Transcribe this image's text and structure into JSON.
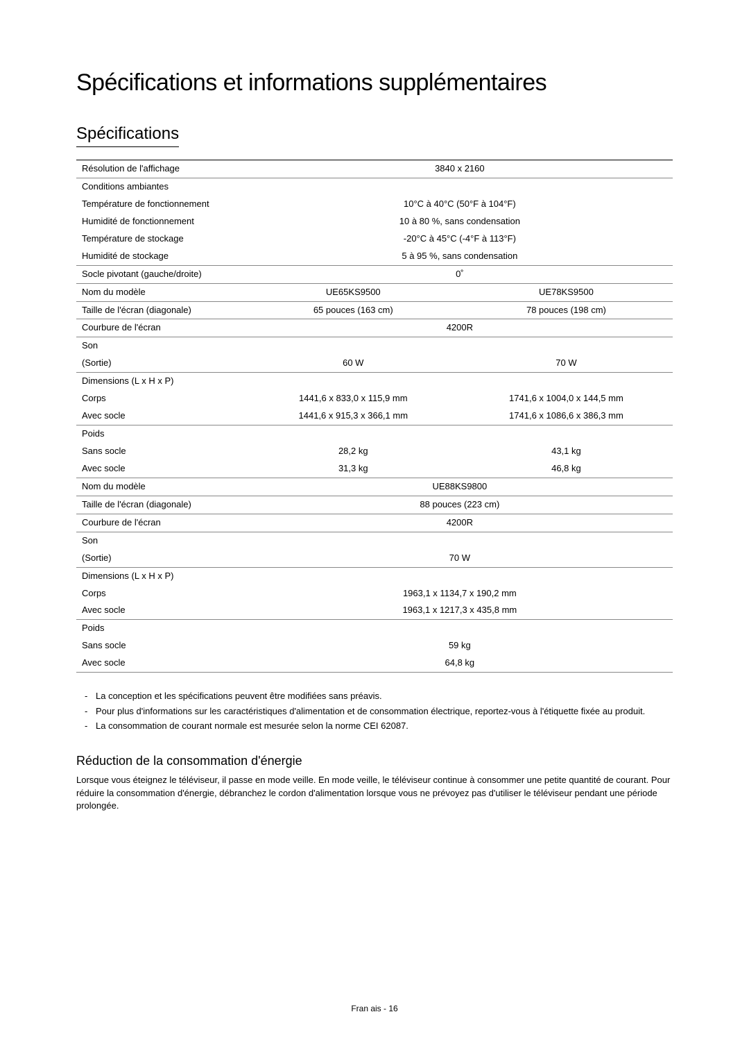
{
  "page": {
    "main_title": "Spécifications et informations supplémentaires",
    "section_title": "Spécifications",
    "footer": "Fran ais - 16"
  },
  "table": {
    "rows": {
      "resolution_label": "Résolution de l'affichage",
      "resolution_value": "3840 x 2160",
      "ambient_label": "Conditions ambiantes",
      "op_temp_label": "Température de fonctionnement",
      "op_temp_value": "10°C à 40°C (50°F à 104°F)",
      "op_humidity_label": "Humidité de fonctionnement",
      "op_humidity_value": "10 à 80 %, sans condensation",
      "storage_temp_label": "Température de stockage",
      "storage_temp_value": "-20°C à 45°C (-4°F à 113°F)",
      "storage_humidity_label": "Humidité de stockage",
      "storage_humidity_value": "5 à 95 %, sans condensation",
      "swivel_label": "Socle pivotant (gauche/droite)",
      "swivel_value": "0˚",
      "model_name_label": "Nom du modèle",
      "model_a": "UE65KS9500",
      "model_b": "UE78KS9500",
      "screen_size_label": "Taille de l'écran (diagonale)",
      "screen_size_a": "65 pouces (163 cm)",
      "screen_size_b": "78 pouces (198 cm)",
      "curvature_label": "Courbure de l'écran",
      "curvature_value": "4200R",
      "sound_label": "Son",
      "output_label": "(Sortie)",
      "output_a": "60 W",
      "output_b": "70 W",
      "dimensions_label": "Dimensions (L x H x P)",
      "body_label": "Corps",
      "body_a": "1441,6 x 833,0 x 115,9 mm",
      "body_b": "1741,6 x 1004,0 x 144,5 mm",
      "with_stand_label": "Avec socle",
      "with_stand_a": "1441,6 x 915,3 x 366,1 mm",
      "with_stand_b": "1741,6 x 1086,6 x 386,3 mm",
      "weight_label": "Poids",
      "without_stand_label": "Sans socle",
      "without_stand_a": "28,2 kg",
      "without_stand_b": "43,1 kg",
      "with_stand_weight_a": "31,3 kg",
      "with_stand_weight_b": "46,8 kg",
      "model_c": "UE88KS9800",
      "screen_size_c": "88 pouces (223 cm)",
      "curvature_c": "4200R",
      "output_c": "70 W",
      "body_c": "1963,1 x 1134,7 x 190,2 mm",
      "with_stand_c": "1963,1 x 1217,3 x 435,8 mm",
      "without_stand_c": "59 kg",
      "with_stand_weight_c": "64,8 kg"
    }
  },
  "notes": {
    "n1": "La conception et les spécifications peuvent être modifiées sans préavis.",
    "n2": "Pour plus d'informations sur les caractéristiques d'alimentation et de consommation électrique, reportez-vous à l'étiquette fixée au produit.",
    "n3": "La consommation de courant normale est mesurée selon la norme CEI 62087."
  },
  "energy": {
    "heading": "Réduction de la consommation d'énergie",
    "paragraph": "Lorsque vous éteignez le téléviseur, il passe en mode veille. En mode veille, le téléviseur continue à consommer une petite quantité de courant. Pour réduire la consommation d'énergie, débranchez le cordon d'alimentation lorsque vous ne prévoyez pas d'utiliser le téléviseur pendant une période prolongée."
  }
}
